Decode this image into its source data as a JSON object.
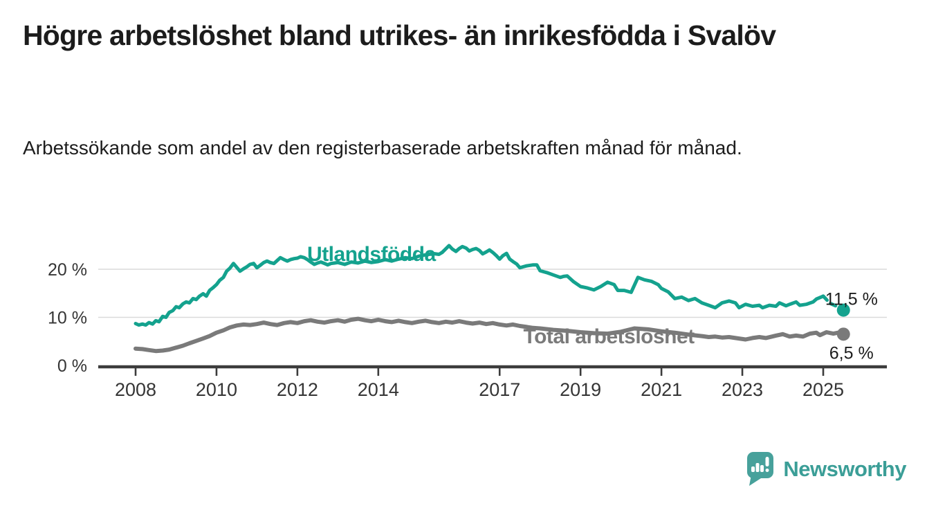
{
  "header": {
    "title": "Högre arbetslöshet bland utrikes- än inrikesfödda i Svalöv",
    "subtitle": "Arbetssökande som andel av den registerbaserade arbetskraften månad för månad."
  },
  "footer": {
    "brand": "Newsworthy"
  },
  "colors": {
    "foreign_series": "#14a28e",
    "total_series": "#7a7a7a",
    "grid": "#dadada",
    "axis": "#3c3c3c",
    "tick_text": "#353535",
    "annotation_text": "#1d1d1d",
    "brand": "#3b9e97",
    "brand_icon": "#47a19b"
  },
  "chart_data": {
    "type": "line",
    "title": "Högre arbetslöshet bland utrikes- än inrikesfödda i Svalöv",
    "subtitle": "Arbetssökande som andel av den registerbaserade arbetskraften månad för månad.",
    "xlabel": "",
    "ylabel": "",
    "x_ticks": [
      2008,
      2010,
      2012,
      2014,
      2017,
      2019,
      2021,
      2023,
      2025
    ],
    "x_tick_labels": [
      "2008",
      "2010",
      "2012",
      "2014",
      "2017",
      "2019",
      "2021",
      "2023",
      "2025"
    ],
    "y_ticks": [
      0,
      10,
      20
    ],
    "y_tick_labels": [
      "0 %",
      "10 %",
      "20 %"
    ],
    "ylim": [
      0,
      26
    ],
    "xlim": [
      2007.1,
      2026.6
    ],
    "grid": "horizontal",
    "legend_position": "inline-labels",
    "series": [
      {
        "name": "Utlandsfödda",
        "color": "#14a28e",
        "end_value": 11.5,
        "end_value_label": "11,5 %",
        "label_at": [
          2013.83,
          21.7
        ],
        "end_label_at": [
          2025.05,
          12.6
        ],
        "marker_end": true,
        "points": [
          [
            2008.0,
            8.7
          ],
          [
            2008.08,
            8.4
          ],
          [
            2008.17,
            8.6
          ],
          [
            2008.25,
            8.4
          ],
          [
            2008.33,
            8.9
          ],
          [
            2008.42,
            8.6
          ],
          [
            2008.5,
            9.3
          ],
          [
            2008.58,
            9.1
          ],
          [
            2008.67,
            10.2
          ],
          [
            2008.75,
            10.0
          ],
          [
            2008.83,
            11.0
          ],
          [
            2008.92,
            11.4
          ],
          [
            2009.0,
            12.2
          ],
          [
            2009.08,
            12.0
          ],
          [
            2009.17,
            12.8
          ],
          [
            2009.25,
            13.2
          ],
          [
            2009.33,
            13.0
          ],
          [
            2009.42,
            13.9
          ],
          [
            2009.5,
            13.7
          ],
          [
            2009.58,
            14.4
          ],
          [
            2009.67,
            14.9
          ],
          [
            2009.75,
            14.4
          ],
          [
            2009.83,
            15.6
          ],
          [
            2009.92,
            16.2
          ],
          [
            2010.0,
            16.8
          ],
          [
            2010.08,
            17.7
          ],
          [
            2010.17,
            18.3
          ],
          [
            2010.25,
            19.6
          ],
          [
            2010.33,
            20.2
          ],
          [
            2010.42,
            21.2
          ],
          [
            2010.5,
            20.4
          ],
          [
            2010.58,
            19.6
          ],
          [
            2010.67,
            20.1
          ],
          [
            2010.75,
            20.5
          ],
          [
            2010.83,
            21.0
          ],
          [
            2010.92,
            21.2
          ],
          [
            2011.0,
            20.3
          ],
          [
            2011.08,
            20.8
          ],
          [
            2011.17,
            21.4
          ],
          [
            2011.25,
            21.7
          ],
          [
            2011.33,
            21.4
          ],
          [
            2011.42,
            21.2
          ],
          [
            2011.5,
            21.8
          ],
          [
            2011.58,
            22.4
          ],
          [
            2011.67,
            22.0
          ],
          [
            2011.75,
            21.7
          ],
          [
            2011.83,
            22.0
          ],
          [
            2011.92,
            22.2
          ],
          [
            2012.0,
            22.3
          ],
          [
            2012.08,
            22.6
          ],
          [
            2012.17,
            22.4
          ],
          [
            2012.25,
            22.0
          ],
          [
            2012.33,
            21.5
          ],
          [
            2012.42,
            21.0
          ],
          [
            2012.5,
            21.3
          ],
          [
            2012.58,
            21.5
          ],
          [
            2012.67,
            21.2
          ],
          [
            2012.75,
            20.9
          ],
          [
            2012.83,
            21.2
          ],
          [
            2012.92,
            21.3
          ],
          [
            2013.0,
            21.4
          ],
          [
            2013.17,
            21.0
          ],
          [
            2013.33,
            21.5
          ],
          [
            2013.5,
            21.3
          ],
          [
            2013.67,
            21.7
          ],
          [
            2013.83,
            21.4
          ],
          [
            2014.0,
            21.6
          ],
          [
            2014.17,
            22.0
          ],
          [
            2014.33,
            21.7
          ],
          [
            2014.5,
            22.1
          ],
          [
            2014.67,
            22.4
          ],
          [
            2014.83,
            22.2
          ],
          [
            2015.0,
            22.7
          ],
          [
            2015.17,
            23.0
          ],
          [
            2015.33,
            23.3
          ],
          [
            2015.5,
            23.1
          ],
          [
            2015.58,
            23.5
          ],
          [
            2015.75,
            24.9
          ],
          [
            2015.83,
            24.2
          ],
          [
            2015.92,
            23.7
          ],
          [
            2016.0,
            24.3
          ],
          [
            2016.08,
            24.7
          ],
          [
            2016.17,
            24.4
          ],
          [
            2016.25,
            23.8
          ],
          [
            2016.33,
            24.1
          ],
          [
            2016.42,
            24.3
          ],
          [
            2016.5,
            23.9
          ],
          [
            2016.58,
            23.2
          ],
          [
            2016.67,
            23.6
          ],
          [
            2016.75,
            24.0
          ],
          [
            2016.83,
            23.5
          ],
          [
            2016.92,
            22.8
          ],
          [
            2017.0,
            22.1
          ],
          [
            2017.08,
            22.8
          ],
          [
            2017.17,
            23.3
          ],
          [
            2017.25,
            22.1
          ],
          [
            2017.33,
            21.6
          ],
          [
            2017.42,
            21.1
          ],
          [
            2017.5,
            20.3
          ],
          [
            2017.58,
            20.5
          ],
          [
            2017.67,
            20.7
          ],
          [
            2017.83,
            20.9
          ],
          [
            2017.92,
            20.9
          ],
          [
            2018.0,
            19.7
          ],
          [
            2018.08,
            19.5
          ],
          [
            2018.17,
            19.3
          ],
          [
            2018.33,
            18.8
          ],
          [
            2018.5,
            18.3
          ],
          [
            2018.58,
            18.5
          ],
          [
            2018.67,
            18.6
          ],
          [
            2018.83,
            17.4
          ],
          [
            2019.0,
            16.4
          ],
          [
            2019.17,
            16.1
          ],
          [
            2019.33,
            15.7
          ],
          [
            2019.5,
            16.4
          ],
          [
            2019.67,
            17.3
          ],
          [
            2019.83,
            16.8
          ],
          [
            2019.92,
            15.6
          ],
          [
            2020.08,
            15.6
          ],
          [
            2020.25,
            15.2
          ],
          [
            2020.42,
            18.3
          ],
          [
            2020.58,
            17.8
          ],
          [
            2020.75,
            17.5
          ],
          [
            2020.92,
            16.8
          ],
          [
            2021.0,
            16.0
          ],
          [
            2021.17,
            15.3
          ],
          [
            2021.33,
            13.9
          ],
          [
            2021.5,
            14.2
          ],
          [
            2021.67,
            13.5
          ],
          [
            2021.83,
            13.9
          ],
          [
            2022.0,
            13.0
          ],
          [
            2022.17,
            12.5
          ],
          [
            2022.33,
            12.0
          ],
          [
            2022.5,
            13.0
          ],
          [
            2022.67,
            13.4
          ],
          [
            2022.83,
            13.0
          ],
          [
            2022.92,
            12.0
          ],
          [
            2023.08,
            12.7
          ],
          [
            2023.25,
            12.3
          ],
          [
            2023.42,
            12.5
          ],
          [
            2023.5,
            12.0
          ],
          [
            2023.67,
            12.5
          ],
          [
            2023.83,
            12.3
          ],
          [
            2023.92,
            13.0
          ],
          [
            2024.08,
            12.4
          ],
          [
            2024.17,
            12.7
          ],
          [
            2024.33,
            13.2
          ],
          [
            2024.42,
            12.5
          ],
          [
            2024.58,
            12.7
          ],
          [
            2024.75,
            13.2
          ],
          [
            2024.83,
            13.8
          ],
          [
            2025.0,
            14.4
          ]
        ],
        "dashed_tail": [
          [
            2025.0,
            14.4
          ],
          [
            2025.17,
            12.9
          ],
          [
            2025.33,
            12.3
          ],
          [
            2025.5,
            11.5
          ]
        ]
      },
      {
        "name": "Total arbetslöshet",
        "color": "#7a7a7a",
        "end_value": 6.5,
        "end_value_label": "6,5 %",
        "label_at": [
          2019.7,
          4.6
        ],
        "end_label_at": [
          2025.15,
          1.4
        ],
        "marker_end": true,
        "points": [
          [
            2008.0,
            3.5
          ],
          [
            2008.17,
            3.4
          ],
          [
            2008.33,
            3.2
          ],
          [
            2008.5,
            3.0
          ],
          [
            2008.67,
            3.1
          ],
          [
            2008.83,
            3.3
          ],
          [
            2009.0,
            3.7
          ],
          [
            2009.17,
            4.1
          ],
          [
            2009.33,
            4.6
          ],
          [
            2009.5,
            5.1
          ],
          [
            2009.67,
            5.6
          ],
          [
            2009.83,
            6.1
          ],
          [
            2010.0,
            6.8
          ],
          [
            2010.17,
            7.3
          ],
          [
            2010.33,
            7.9
          ],
          [
            2010.5,
            8.3
          ],
          [
            2010.67,
            8.5
          ],
          [
            2010.83,
            8.4
          ],
          [
            2011.0,
            8.6
          ],
          [
            2011.17,
            8.9
          ],
          [
            2011.33,
            8.6
          ],
          [
            2011.5,
            8.4
          ],
          [
            2011.67,
            8.8
          ],
          [
            2011.83,
            9.0
          ],
          [
            2012.0,
            8.8
          ],
          [
            2012.17,
            9.2
          ],
          [
            2012.33,
            9.4
          ],
          [
            2012.5,
            9.1
          ],
          [
            2012.67,
            8.9
          ],
          [
            2012.83,
            9.2
          ],
          [
            2013.0,
            9.4
          ],
          [
            2013.17,
            9.1
          ],
          [
            2013.33,
            9.5
          ],
          [
            2013.5,
            9.7
          ],
          [
            2013.67,
            9.4
          ],
          [
            2013.83,
            9.2
          ],
          [
            2014.0,
            9.5
          ],
          [
            2014.17,
            9.2
          ],
          [
            2014.33,
            9.0
          ],
          [
            2014.5,
            9.3
          ],
          [
            2014.67,
            9.0
          ],
          [
            2014.83,
            8.8
          ],
          [
            2015.0,
            9.1
          ],
          [
            2015.17,
            9.3
          ],
          [
            2015.33,
            9.0
          ],
          [
            2015.5,
            8.8
          ],
          [
            2015.67,
            9.1
          ],
          [
            2015.83,
            8.9
          ],
          [
            2016.0,
            9.2
          ],
          [
            2016.17,
            8.9
          ],
          [
            2016.33,
            8.7
          ],
          [
            2016.5,
            8.9
          ],
          [
            2016.67,
            8.6
          ],
          [
            2016.83,
            8.8
          ],
          [
            2017.0,
            8.5
          ],
          [
            2017.17,
            8.3
          ],
          [
            2017.33,
            8.5
          ],
          [
            2017.5,
            8.2
          ],
          [
            2017.67,
            8.0
          ],
          [
            2017.83,
            7.8
          ],
          [
            2018.0,
            7.7
          ],
          [
            2018.33,
            7.4
          ],
          [
            2018.67,
            7.2
          ],
          [
            2019.0,
            6.9
          ],
          [
            2019.33,
            6.7
          ],
          [
            2019.67,
            6.6
          ],
          [
            2020.0,
            7.0
          ],
          [
            2020.33,
            7.7
          ],
          [
            2020.67,
            7.5
          ],
          [
            2021.0,
            7.1
          ],
          [
            2021.33,
            6.8
          ],
          [
            2021.67,
            6.4
          ],
          [
            2022.0,
            6.1
          ],
          [
            2022.17,
            5.9
          ],
          [
            2022.33,
            6.0
          ],
          [
            2022.5,
            5.8
          ],
          [
            2022.67,
            5.9
          ],
          [
            2022.83,
            5.7
          ],
          [
            2023.08,
            5.4
          ],
          [
            2023.25,
            5.7
          ],
          [
            2023.42,
            5.9
          ],
          [
            2023.58,
            5.7
          ],
          [
            2023.83,
            6.2
          ],
          [
            2024.0,
            6.5
          ],
          [
            2024.17,
            6.0
          ],
          [
            2024.33,
            6.2
          ],
          [
            2024.5,
            6.0
          ],
          [
            2024.67,
            6.6
          ],
          [
            2024.83,
            6.8
          ],
          [
            2024.92,
            6.3
          ],
          [
            2025.08,
            6.9
          ],
          [
            2025.25,
            6.6
          ],
          [
            2025.42,
            6.9
          ],
          [
            2025.5,
            6.5
          ]
        ]
      }
    ]
  }
}
